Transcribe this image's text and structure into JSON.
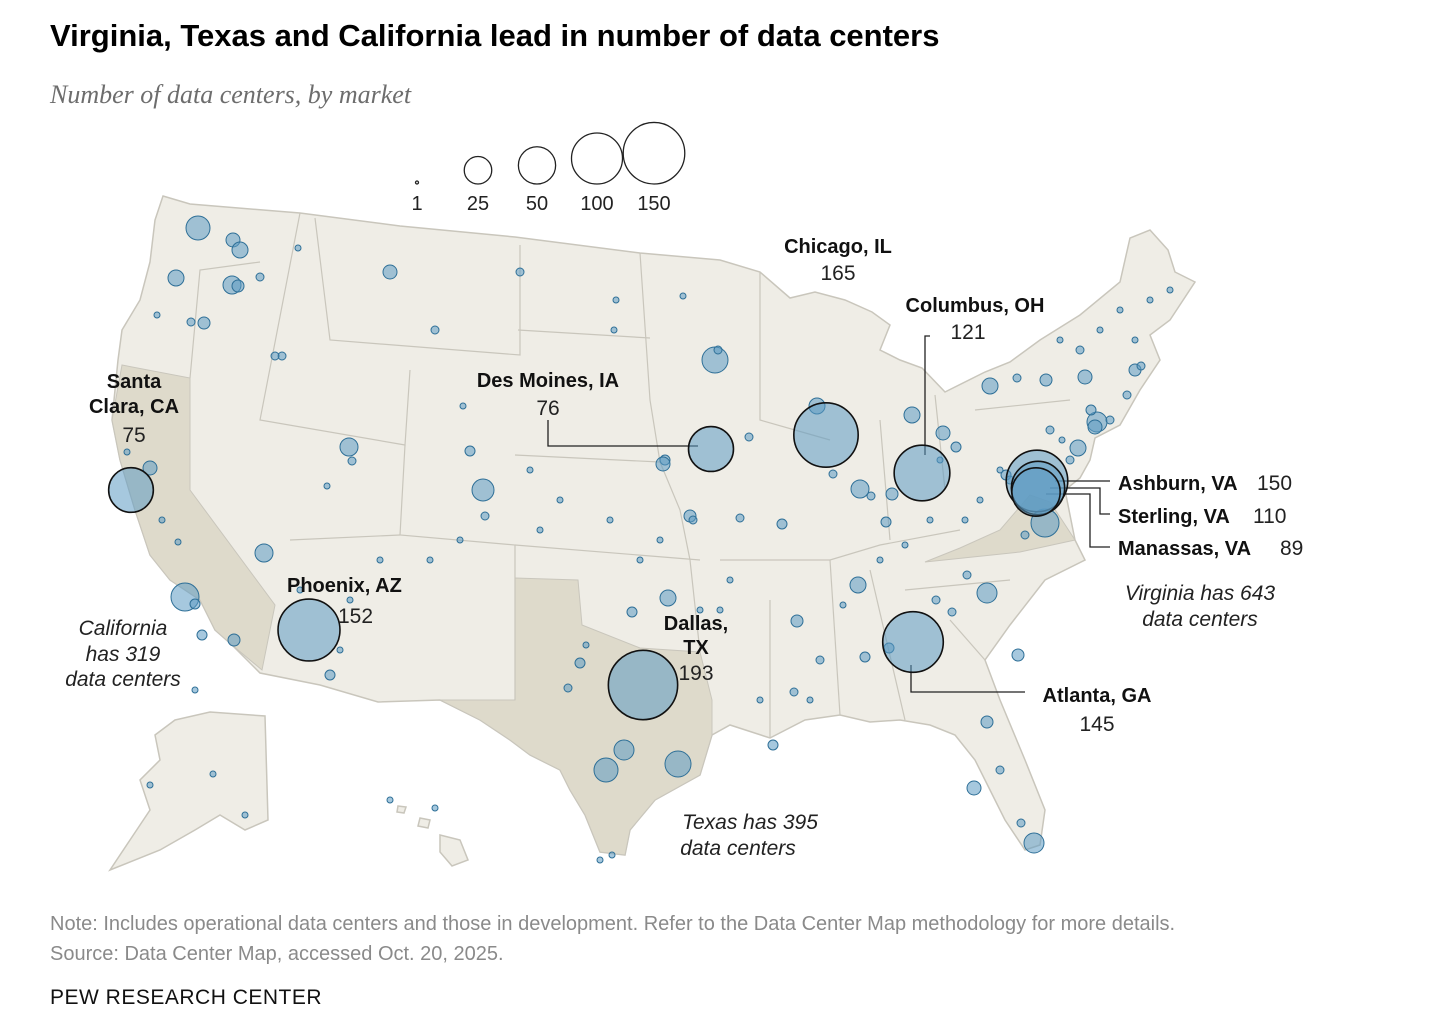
{
  "title": "Virginia, Texas and California lead in number of data centers",
  "subtitle": "Number of data centers, by market",
  "legend": {
    "sizes": [
      {
        "value": 1,
        "label": "1"
      },
      {
        "value": 25,
        "label": "25"
      },
      {
        "value": 50,
        "label": "50"
      },
      {
        "value": 100,
        "label": "100"
      },
      {
        "value": 150,
        "label": "150"
      }
    ]
  },
  "markets": [
    {
      "id": "santa-clara",
      "name": "Santa Clara, CA",
      "name_lines": [
        "Santa",
        "Clara, CA"
      ],
      "value": 75,
      "value_label": "75"
    },
    {
      "id": "des-moines",
      "name": "Des Moines, IA",
      "value": 76,
      "value_label": "76"
    },
    {
      "id": "chicago",
      "name": "Chicago, IL",
      "value": 165,
      "value_label": "165"
    },
    {
      "id": "columbus",
      "name": "Columbus, OH",
      "value": 121,
      "value_label": "121"
    },
    {
      "id": "ashburn",
      "name": "Ashburn, VA",
      "value": 150,
      "value_label": "150"
    },
    {
      "id": "sterling",
      "name": "Sterling, VA",
      "value": 110,
      "value_label": "110"
    },
    {
      "id": "manassas",
      "name": "Manassas, VA",
      "value": 89,
      "value_label": "89"
    },
    {
      "id": "phoenix",
      "name": "Phoenix, AZ",
      "value": 152,
      "value_label": "152"
    },
    {
      "id": "dallas",
      "name": "Dallas, TX",
      "name_lines": [
        "Dallas,",
        "TX"
      ],
      "value": 193,
      "value_label": "193"
    },
    {
      "id": "atlanta",
      "name": "Atlanta, GA",
      "value": 145,
      "value_label": "145"
    }
  ],
  "state_notes": [
    {
      "id": "california",
      "lines": [
        "California",
        "has 319",
        "data centers"
      ]
    },
    {
      "id": "texas",
      "lines": [
        "Texas has 395",
        "data centers"
      ]
    },
    {
      "id": "virginia",
      "lines": [
        "Virginia has 643",
        "data centers"
      ]
    }
  ],
  "colors": {
    "land": "#efede6",
    "highlight_state": "#dedacb",
    "state_border": "#c9c6bc",
    "bubble_fill": "#5c9bc3",
    "bubble_stroke": "#2e6f97",
    "leader": "#222222"
  },
  "note": "Note: Includes operational data centers and those in development. Refer to the Data Center Map methodology for more details.",
  "source": "Source: Data Center Map, accessed Oct. 20, 2025.",
  "brand": "PEW RESEARCH CENTER"
}
